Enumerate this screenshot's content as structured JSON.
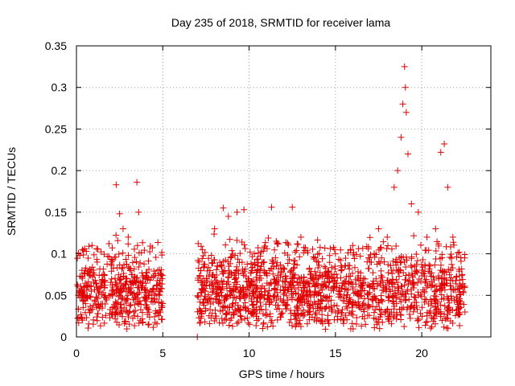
{
  "chart_data": {
    "type": "scatter",
    "title": "Day 235 of 2018, SRMTID for receiver lama",
    "xlabel": "GPS time / hours",
    "ylabel": "SRMTID / TECUs",
    "xlim": [
      0,
      24
    ],
    "ylim": [
      0,
      0.35
    ],
    "xticks": [
      "0",
      "5",
      "10",
      "15",
      "20"
    ],
    "xtick_values": [
      0,
      5,
      10,
      15,
      20
    ],
    "yticks": [
      "0",
      "0.05",
      "0.1",
      "0.15",
      "0.2",
      "0.25",
      "0.3",
      "0.35"
    ],
    "ytick_values": [
      0,
      0.05,
      0.1,
      0.15,
      0.2,
      0.25,
      0.3,
      0.35
    ],
    "grid": true,
    "marker": "+",
    "color": "#e00000",
    "series": [
      {
        "name": "SRMTID",
        "segments": [
          {
            "x_start": 0.0,
            "x_end": 5.0,
            "median": 0.06
          },
          {
            "x_start": 7.0,
            "x_end": 22.5,
            "median": 0.06
          }
        ],
        "points": [
          {
            "x": 0.2,
            "y": 0.098
          },
          {
            "x": 0.5,
            "y": 0.08
          },
          {
            "x": 0.9,
            "y": 0.11
          },
          {
            "x": 1.2,
            "y": 0.09
          },
          {
            "x": 1.6,
            "y": 0.075
          },
          {
            "x": 2.1,
            "y": 0.06
          },
          {
            "x": 2.3,
            "y": 0.183
          },
          {
            "x": 2.5,
            "y": 0.148
          },
          {
            "x": 2.7,
            "y": 0.13
          },
          {
            "x": 3.0,
            "y": 0.12
          },
          {
            "x": 3.5,
            "y": 0.186
          },
          {
            "x": 3.6,
            "y": 0.15
          },
          {
            "x": 4.0,
            "y": 0.07
          },
          {
            "x": 4.5,
            "y": 0.05
          },
          {
            "x": 4.8,
            "y": 0.03
          },
          {
            "x": 7.0,
            "y": 0.0
          },
          {
            "x": 7.1,
            "y": 0.09
          },
          {
            "x": 8.0,
            "y": 0.13
          },
          {
            "x": 8.5,
            "y": 0.155
          },
          {
            "x": 8.8,
            "y": 0.145
          },
          {
            "x": 9.3,
            "y": 0.15
          },
          {
            "x": 9.7,
            "y": 0.153
          },
          {
            "x": 10.3,
            "y": 0.1
          },
          {
            "x": 11.3,
            "y": 0.156
          },
          {
            "x": 12.5,
            "y": 0.156
          },
          {
            "x": 13.0,
            "y": 0.12
          },
          {
            "x": 14.0,
            "y": 0.09
          },
          {
            "x": 15.0,
            "y": 0.1
          },
          {
            "x": 16.0,
            "y": 0.11
          },
          {
            "x": 17.0,
            "y": 0.09
          },
          {
            "x": 17.5,
            "y": 0.13
          },
          {
            "x": 18.0,
            "y": 0.12
          },
          {
            "x": 18.4,
            "y": 0.18
          },
          {
            "x": 18.6,
            "y": 0.2
          },
          {
            "x": 18.8,
            "y": 0.24
          },
          {
            "x": 18.9,
            "y": 0.28
          },
          {
            "x": 19.0,
            "y": 0.325
          },
          {
            "x": 19.05,
            "y": 0.3
          },
          {
            "x": 19.1,
            "y": 0.27
          },
          {
            "x": 19.2,
            "y": 0.22
          },
          {
            "x": 19.4,
            "y": 0.16
          },
          {
            "x": 19.8,
            "y": 0.15
          },
          {
            "x": 20.3,
            "y": 0.12
          },
          {
            "x": 20.8,
            "y": 0.13
          },
          {
            "x": 21.1,
            "y": 0.222
          },
          {
            "x": 21.3,
            "y": 0.232
          },
          {
            "x": 21.5,
            "y": 0.18
          },
          {
            "x": 21.8,
            "y": 0.12
          },
          {
            "x": 22.2,
            "y": 0.06
          },
          {
            "x": 22.5,
            "y": 0.03
          }
        ]
      }
    ]
  }
}
